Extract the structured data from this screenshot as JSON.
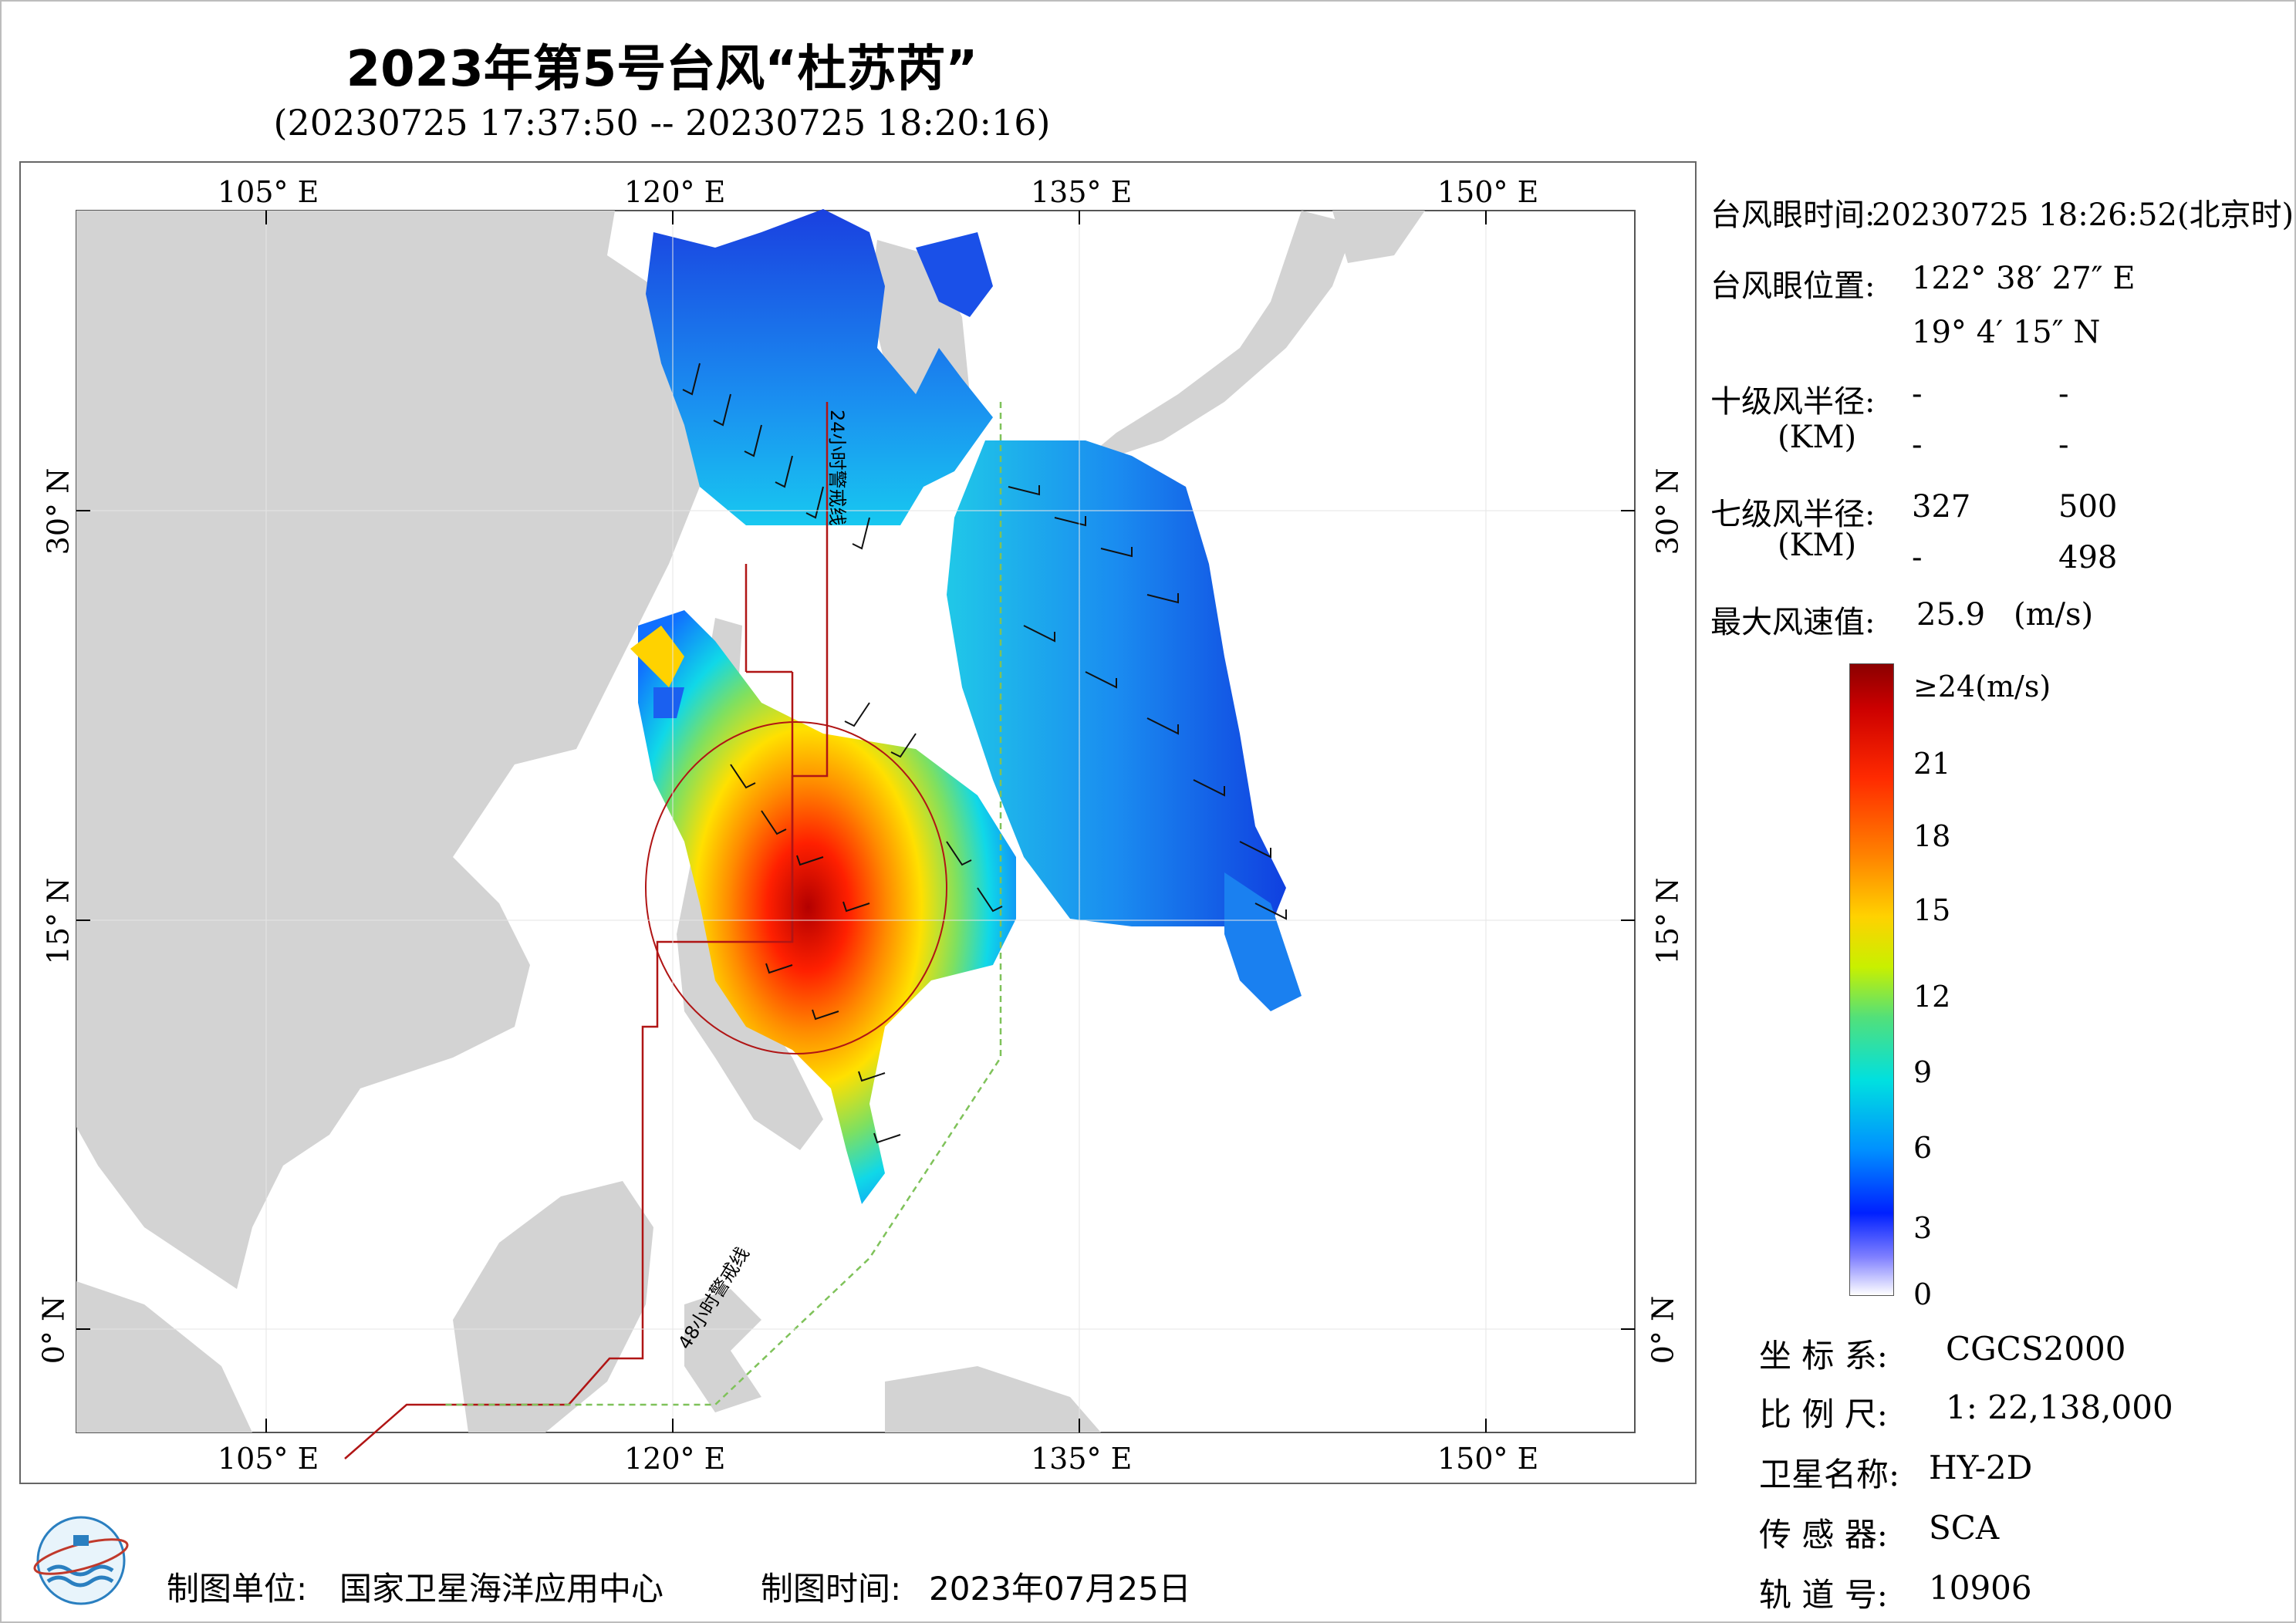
{
  "title": "2023年第5号台风“杜苏芮”",
  "subtitle": "(20230725 17:37:50 -- 20230725 18:20:16)",
  "map": {
    "lon_top_labels": [
      "105° E",
      "120° E",
      "135° E",
      "150° E"
    ],
    "lon_bottom_labels": [
      "105° E",
      "120° E",
      "135° E",
      "150° E"
    ],
    "lat_left_labels": [
      "30° N",
      "15° N",
      "0° N"
    ],
    "lat_right_labels": [
      "30° N",
      "15° N",
      "0° N"
    ],
    "line_24h_label": "24小时警戒线",
    "line_48h_label": "48小时警戒线",
    "colors": {
      "land": "#d3d3d3",
      "sea": "#ffffff",
      "line_24h": "#b01515",
      "line_48h": "#7fc25a",
      "eye_circle": "#b01515"
    }
  },
  "info": {
    "eye_time_label": "台风眼时间:",
    "eye_time_value": "20230725 18:26:52(北京时)",
    "eye_pos_label": "台风眼位置:",
    "eye_lon": "122° 38′ 27″ E",
    "eye_lat": "19° 4′ 15″ N",
    "r10_label": "十级风半径:",
    "r10_unit": "(KM)",
    "r10_values": [
      "-",
      "-",
      "-",
      "-"
    ],
    "r7_label": "七级风半径:",
    "r7_unit": "(KM)",
    "r7_values": [
      "327",
      "500",
      "-",
      "498"
    ],
    "max_wind_label": "最大风速值:",
    "max_wind_value": "25.9",
    "max_wind_unit": "(m/s)"
  },
  "colorbar": {
    "top_label": "≥24(m/s)",
    "ticks": [
      "21",
      "18",
      "15",
      "12",
      "9",
      "6",
      "3",
      "0"
    ]
  },
  "metadata": {
    "crs_label": "坐 标 系:",
    "crs_value": "CGCS2000",
    "scale_label": "比 例 尺:",
    "scale_value": "1: 22,138,000",
    "satellite_label": "卫星名称:",
    "satellite_value": "HY-2D",
    "sensor_label": "传 感 器:",
    "sensor_value": "SCA",
    "orbit_label": "轨 道 号:",
    "orbit_value": "10906"
  },
  "footer": {
    "unit_label": "制图单位:",
    "unit_value": "国家卫星海洋应用中心",
    "date_label": "制图时间:",
    "date_value": "2023年07月25日"
  }
}
